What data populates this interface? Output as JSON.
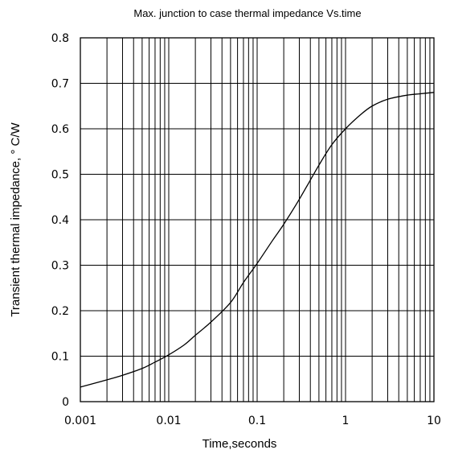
{
  "chart_data": {
    "type": "line",
    "title": "Max. junction to case thermal impedance Vs.time",
    "xlabel": "Time,seconds",
    "ylabel": "Transient  thermal impedance, °  C/W",
    "x_scale": "log",
    "xlim": [
      0.001,
      10
    ],
    "ylim": [
      0,
      0.8
    ],
    "grid": true,
    "x_ticks": [
      "0.001",
      "0.01",
      "0.1",
      "1",
      "10"
    ],
    "y_ticks": [
      "0",
      "0.1",
      "0.2",
      "0.3",
      "0.4",
      "0.5",
      "0.6",
      "0.7",
      "0.8"
    ],
    "series": [
      {
        "x": [
          0.001,
          0.002,
          0.003,
          0.005,
          0.007,
          0.01,
          0.015,
          0.02,
          0.03,
          0.05,
          0.07,
          0.1,
          0.15,
          0.2,
          0.3,
          0.5,
          0.7,
          1,
          1.5,
          2,
          3,
          5,
          7,
          10
        ],
        "y": [
          0.032,
          0.048,
          0.058,
          0.073,
          0.087,
          0.103,
          0.125,
          0.146,
          0.175,
          0.218,
          0.262,
          0.304,
          0.355,
          0.39,
          0.445,
          0.52,
          0.565,
          0.6,
          0.632,
          0.65,
          0.665,
          0.674,
          0.677,
          0.68
        ]
      }
    ]
  }
}
